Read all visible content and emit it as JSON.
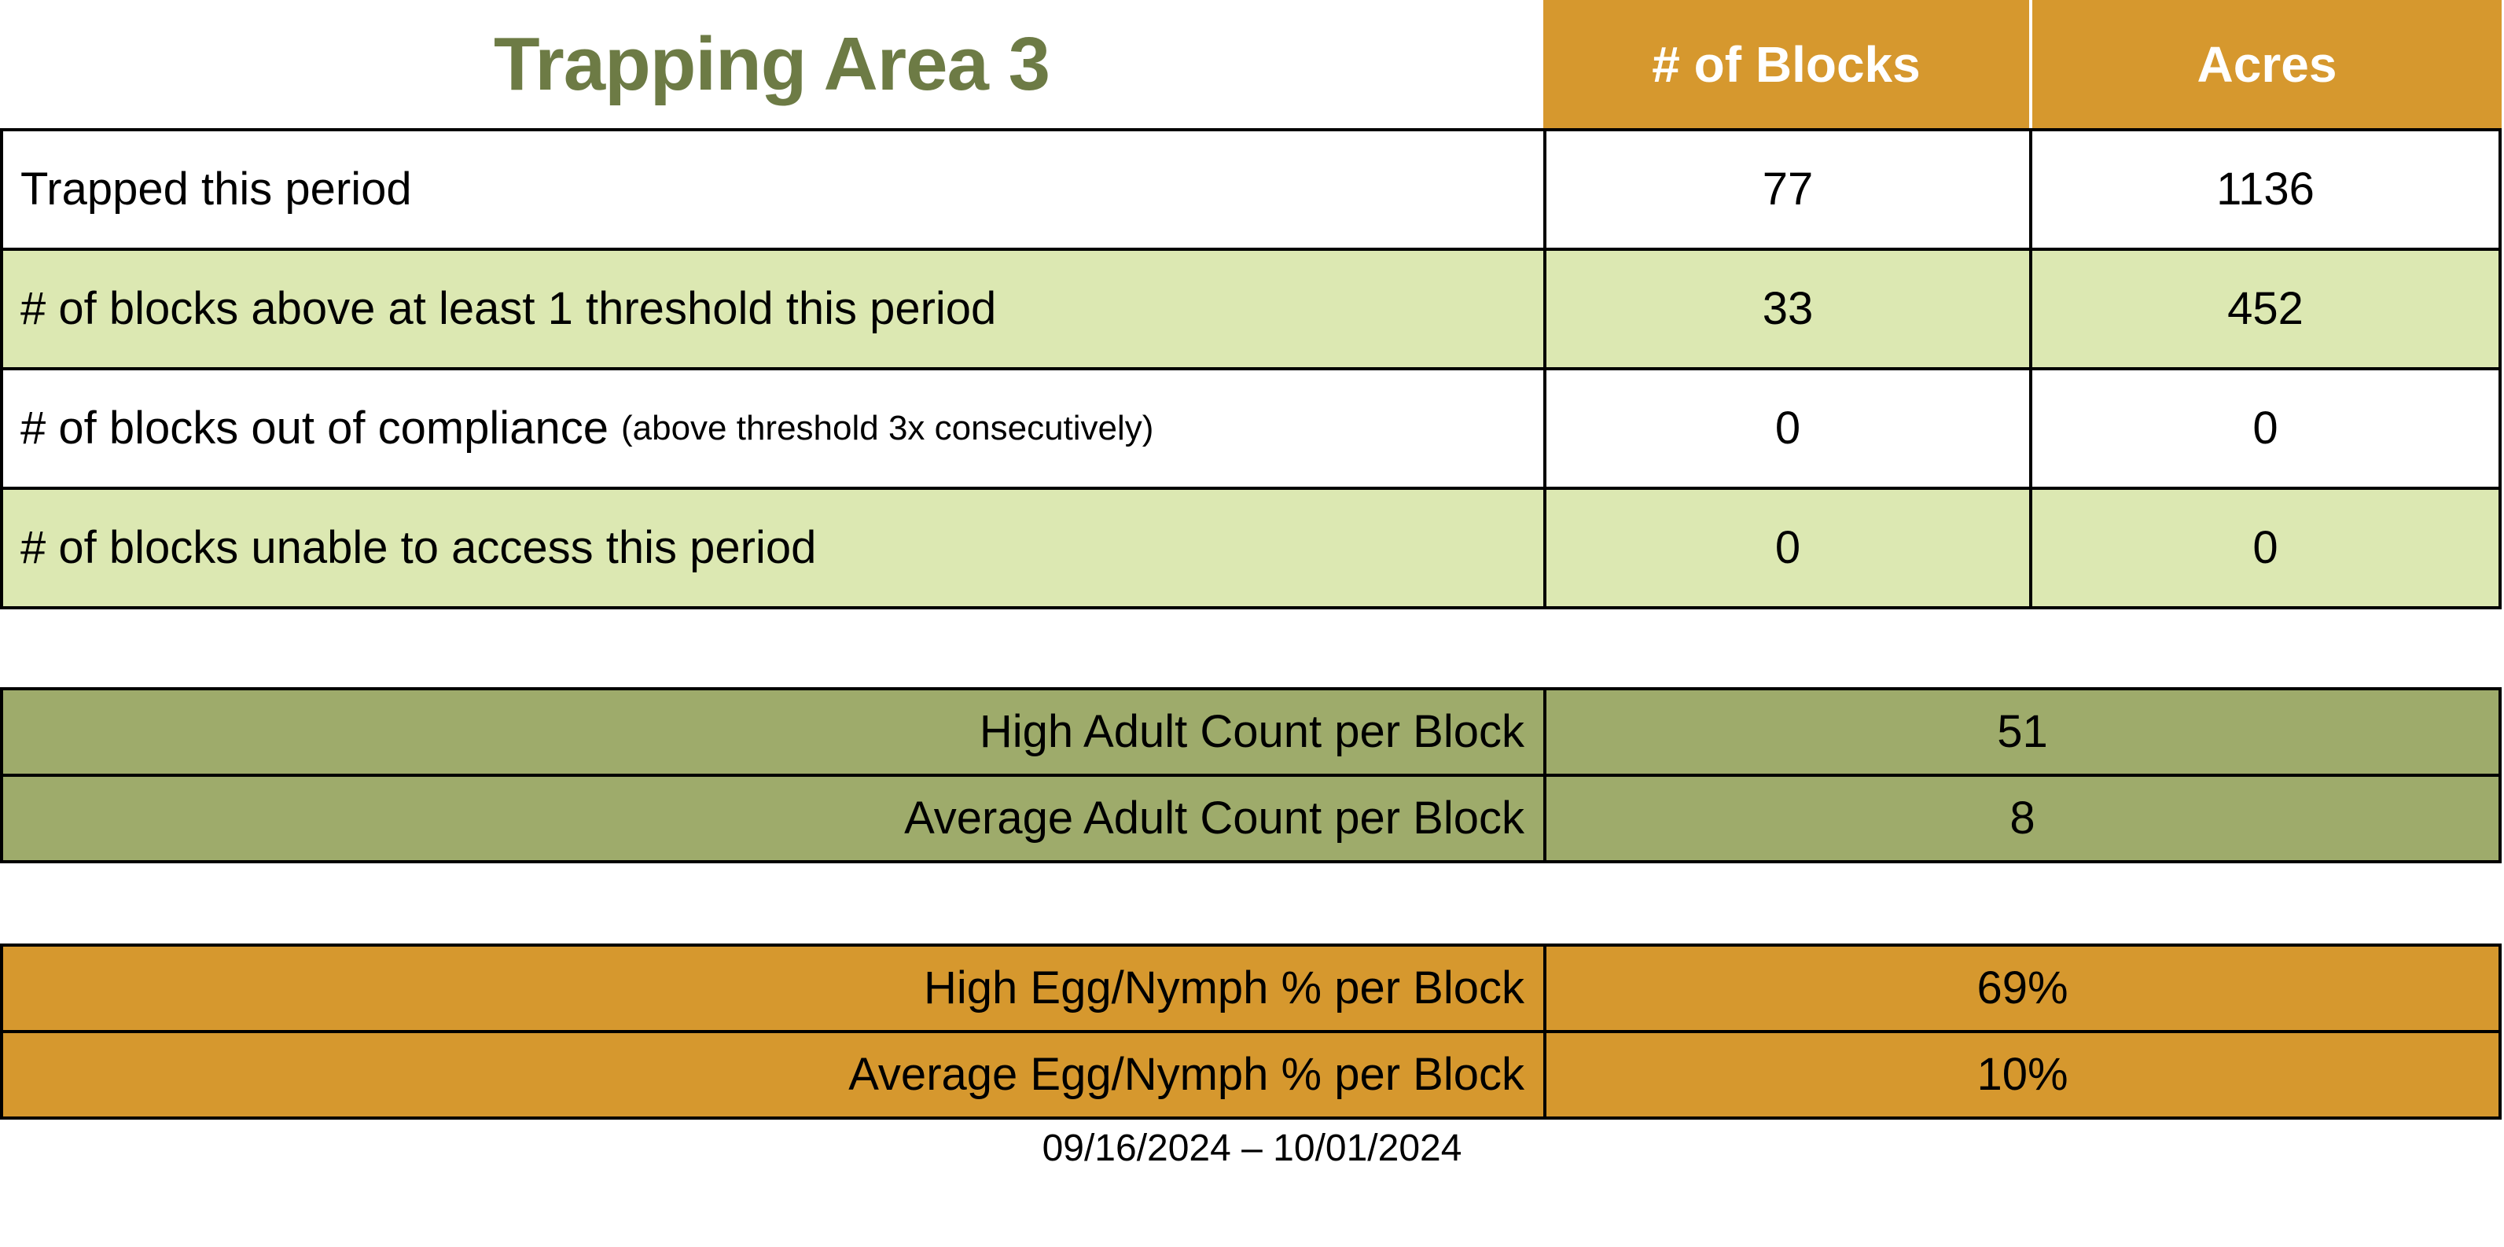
{
  "title": "Trapping Area 3",
  "header": {
    "blocks_label": "# of Blocks",
    "acres_label": "Acres"
  },
  "summary_table": {
    "rows": [
      {
        "label": "Trapped this period",
        "note": "",
        "blocks": "77",
        "acres": "1136"
      },
      {
        "label": "# of blocks above at least 1 threshold this period",
        "note": "",
        "blocks": "33",
        "acres": "452"
      },
      {
        "label": "# of blocks out of compliance",
        "note": "(above threshold 3x consecutively)",
        "blocks": "0",
        "acres": "0"
      },
      {
        "label": "# of blocks unable to access this period",
        "note": "",
        "blocks": "0",
        "acres": "0"
      }
    ]
  },
  "adult_count_table": {
    "rows": [
      {
        "label": "High Adult Count per Block",
        "value": "51"
      },
      {
        "label": "Average Adult Count per Block",
        "value": "8"
      }
    ]
  },
  "egg_nymph_table": {
    "rows": [
      {
        "label": "High Egg/Nymph % per Block",
        "value": "69%"
      },
      {
        "label": "Average Egg/Nymph % per Block",
        "value": "10%"
      }
    ]
  },
  "footer": {
    "date_range": "09/16/2024 – 10/01/2024"
  },
  "colors": {
    "orange": "#D6982E",
    "light_green": "#DCE8B2",
    "olive": "#9EAB6B",
    "title_green": "#6D7B45",
    "border_black": "#000000"
  }
}
